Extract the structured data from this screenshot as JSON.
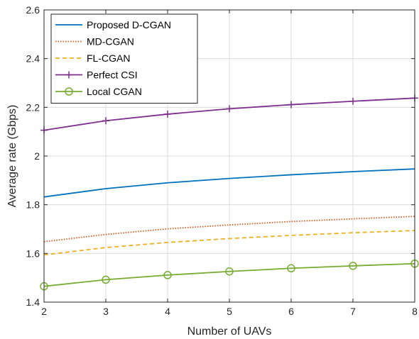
{
  "chart_data": {
    "type": "line",
    "title": "",
    "xlabel": "Number of UAVs",
    "ylabel": "Average rate (Gbps)",
    "x": [
      2,
      3,
      4,
      5,
      6,
      7,
      8
    ],
    "xlim": [
      2,
      8
    ],
    "ylim": [
      1.4,
      2.6
    ],
    "xticks": [
      "2",
      "3",
      "4",
      "5",
      "6",
      "7",
      "8"
    ],
    "yticks": [
      "1.4",
      "1.6",
      "1.8",
      "2",
      "2.2",
      "2.4",
      "2.6"
    ],
    "grid": true,
    "legend_position": "top-left",
    "series": [
      {
        "name": "Proposed D-CGAN",
        "color": "#0072BD",
        "style": "solid",
        "marker": "none",
        "values": [
          1.832,
          1.866,
          1.89,
          1.908,
          1.923,
          1.936,
          1.947
        ]
      },
      {
        "name": "MD-CGAN",
        "color": "#D95319",
        "style": "dotted",
        "marker": "none",
        "values": [
          1.648,
          1.678,
          1.701,
          1.717,
          1.731,
          1.742,
          1.752
        ]
      },
      {
        "name": "FL-CGAN",
        "color": "#EDB120",
        "style": "dashed",
        "marker": "none",
        "values": [
          1.594,
          1.624,
          1.645,
          1.661,
          1.674,
          1.685,
          1.694
        ]
      },
      {
        "name": "Perfect CSI",
        "color": "#7E2F8E",
        "style": "solid",
        "marker": "plus",
        "values": [
          2.106,
          2.145,
          2.172,
          2.194,
          2.211,
          2.225,
          2.238
        ]
      },
      {
        "name": "Local CGAN",
        "color": "#77AC30",
        "style": "solid",
        "marker": "circle",
        "values": [
          1.465,
          1.492,
          1.511,
          1.526,
          1.539,
          1.549,
          1.558
        ]
      }
    ]
  }
}
